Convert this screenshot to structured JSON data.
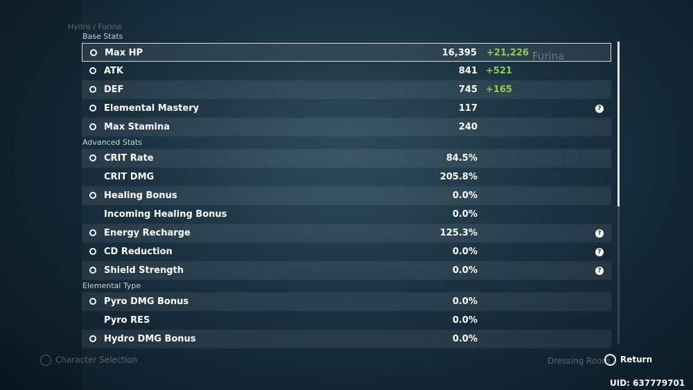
{
  "header": {
    "breadcrumb": "Hydro / Furina",
    "character": "Furina"
  },
  "sections": [
    {
      "title": "Base Stats",
      "rows": [
        {
          "name": "Max HP",
          "value": "16,395",
          "bonus": "+21,226"
        },
        {
          "name": "ATK",
          "value": "841",
          "bonus": "+521"
        },
        {
          "name": "DEF",
          "value": "745",
          "bonus": "+165"
        },
        {
          "name": "Elemental Mastery",
          "value": "117",
          "help": true
        },
        {
          "name": "Max Stamina",
          "value": "240"
        }
      ]
    },
    {
      "title": "Advanced Stats",
      "rows": [
        {
          "name": "CRIT Rate",
          "value": "84.5%"
        },
        {
          "name": "CRIT DMG",
          "value": "205.8%"
        },
        {
          "name": "Healing Bonus",
          "value": "0.0%"
        },
        {
          "name": "Incoming Healing Bonus",
          "value": "0.0%"
        },
        {
          "name": "Energy Recharge",
          "value": "125.3%",
          "help": true
        },
        {
          "name": "CD Reduction",
          "value": "0.0%",
          "help": true
        },
        {
          "name": "Shield Strength",
          "value": "0.0%",
          "help": true
        }
      ]
    },
    {
      "title": "Elemental Type",
      "rows": [
        {
          "name": "Pyro DMG Bonus",
          "value": "0.0%"
        },
        {
          "name": "Pyro RES",
          "value": "0.0%"
        },
        {
          "name": "Hydro DMG Bonus",
          "value": "0.0%"
        }
      ]
    }
  ],
  "footer": {
    "left": "Character Selection",
    "middle": "Dressing Room",
    "return": "Return",
    "uid": "UID: 637779701"
  }
}
